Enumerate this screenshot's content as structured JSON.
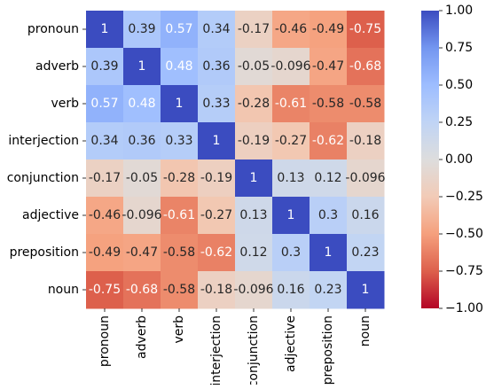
{
  "chart_data": {
    "type": "heatmap",
    "title": "",
    "xlabel": "",
    "ylabel": "",
    "categories": [
      "pronoun",
      "adverb",
      "verb",
      "interjection",
      "conjunction",
      "adjective",
      "preposition",
      "noun"
    ],
    "row_labels": [
      "pronoun",
      "adverb",
      "verb",
      "interjection",
      "conjunction",
      "adjective",
      "preposition",
      "noun"
    ],
    "col_labels": [
      "pronoun",
      "adverb",
      "verb",
      "interjection",
      "conjunction",
      "adjective",
      "preposition",
      "noun"
    ],
    "values": [
      [
        1,
        0.39,
        0.57,
        0.34,
        -0.17,
        -0.46,
        -0.49,
        -0.75
      ],
      [
        0.39,
        1,
        0.48,
        0.36,
        -0.05,
        -0.096,
        -0.47,
        -0.68
      ],
      [
        0.57,
        0.48,
        1,
        0.33,
        -0.28,
        -0.61,
        -0.58,
        -0.58
      ],
      [
        0.34,
        0.36,
        0.33,
        1,
        -0.19,
        -0.27,
        -0.62,
        -0.18
      ],
      [
        -0.17,
        -0.05,
        -0.28,
        -0.19,
        1,
        0.13,
        0.12,
        -0.096
      ],
      [
        -0.46,
        -0.096,
        -0.61,
        -0.27,
        0.13,
        1,
        0.3,
        0.16
      ],
      [
        -0.49,
        -0.47,
        -0.58,
        -0.62,
        0.12,
        0.3,
        1,
        0.23
      ],
      [
        -0.75,
        -0.68,
        -0.58,
        -0.18,
        -0.096,
        0.16,
        0.23,
        1
      ]
    ],
    "value_labels": [
      [
        "1",
        "0.39",
        "0.57",
        "0.34",
        "-0.17",
        "-0.46",
        "-0.49",
        "-0.75"
      ],
      [
        "0.39",
        "1",
        "0.48",
        "0.36",
        "-0.05",
        "-0.096",
        "-0.47",
        "-0.68"
      ],
      [
        "0.57",
        "0.48",
        "1",
        "0.33",
        "-0.28",
        "-0.61",
        "-0.58",
        "-0.58"
      ],
      [
        "0.34",
        "0.36",
        "0.33",
        "1",
        "-0.19",
        "-0.27",
        "-0.62",
        "-0.18"
      ],
      [
        "-0.17",
        "-0.05",
        "-0.28",
        "-0.19",
        "1",
        "0.13",
        "0.12",
        "-0.096"
      ],
      [
        "-0.46",
        "-0.096",
        "-0.61",
        "-0.27",
        "0.13",
        "1",
        "0.3",
        "0.16"
      ],
      [
        "-0.49",
        "-0.47",
        "-0.58",
        "-0.62",
        "0.12",
        "0.3",
        "1",
        "0.23"
      ],
      [
        "-0.75",
        "-0.68",
        "-0.58",
        "-0.18",
        "-0.096",
        "0.16",
        "0.23",
        "1"
      ]
    ],
    "colormap": "coolwarm_r",
    "vmin": -1,
    "vmax": 1,
    "colorbar": {
      "ticks": [
        1.0,
        0.75,
        0.5,
        0.25,
        0.0,
        -0.25,
        -0.5,
        -0.75,
        -1.0
      ],
      "tick_labels": [
        "1.00",
        "0.75",
        "0.50",
        "0.25",
        "0.00",
        "−0.25",
        "−0.50",
        "−0.75",
        "−1.00"
      ]
    },
    "colors": {
      "high": "#3b4cc0",
      "mid": "#dddddd",
      "low": "#b40426"
    }
  }
}
